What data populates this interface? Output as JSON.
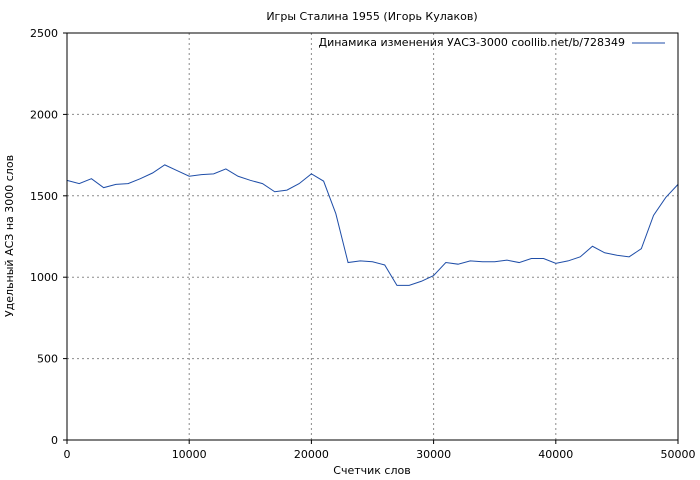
{
  "chart_data": {
    "type": "line",
    "title": "Игры Сталина 1955 (Игорь Кулаков)",
    "xlabel": "Счетчик слов",
    "ylabel": "Удельный АСЗ на 3000 слов",
    "xlim": [
      0,
      50000
    ],
    "ylim": [
      0,
      2500
    ],
    "xticks": [
      0,
      10000,
      20000,
      30000,
      40000,
      50000
    ],
    "yticks": [
      0,
      500,
      1000,
      1500,
      2000,
      2500
    ],
    "grid": true,
    "legend_position": "top-right",
    "colors": {
      "series": "#1f4ea8",
      "grid": "#8c8c8c",
      "frame": "#000000"
    },
    "series": [
      {
        "name": "Динамика изменения УАСЗ-3000 coollib.net/b/728349",
        "x": [
          0,
          1000,
          2000,
          3000,
          4000,
          5000,
          6000,
          7000,
          8000,
          9000,
          10000,
          11000,
          12000,
          13000,
          14000,
          15000,
          16000,
          17000,
          18000,
          19000,
          20000,
          21000,
          22000,
          23000,
          24000,
          25000,
          26000,
          27000,
          28000,
          29000,
          30000,
          31000,
          32000,
          33000,
          34000,
          35000,
          36000,
          37000,
          38000,
          39000,
          40000,
          41000,
          42000,
          43000,
          44000,
          45000,
          46000,
          47000,
          48000,
          49000,
          50000
        ],
        "y": [
          1595,
          1575,
          1605,
          1550,
          1570,
          1575,
          1605,
          1640,
          1690,
          1655,
          1620,
          1630,
          1635,
          1665,
          1620,
          1595,
          1575,
          1525,
          1535,
          1575,
          1635,
          1590,
          1390,
          1090,
          1100,
          1095,
          1075,
          950,
          950,
          975,
          1010,
          1090,
          1080,
          1100,
          1095,
          1095,
          1105,
          1090,
          1115,
          1115,
          1085,
          1100,
          1125,
          1190,
          1150,
          1135,
          1125,
          1175,
          1380,
          1490,
          1570
        ]
      }
    ]
  }
}
